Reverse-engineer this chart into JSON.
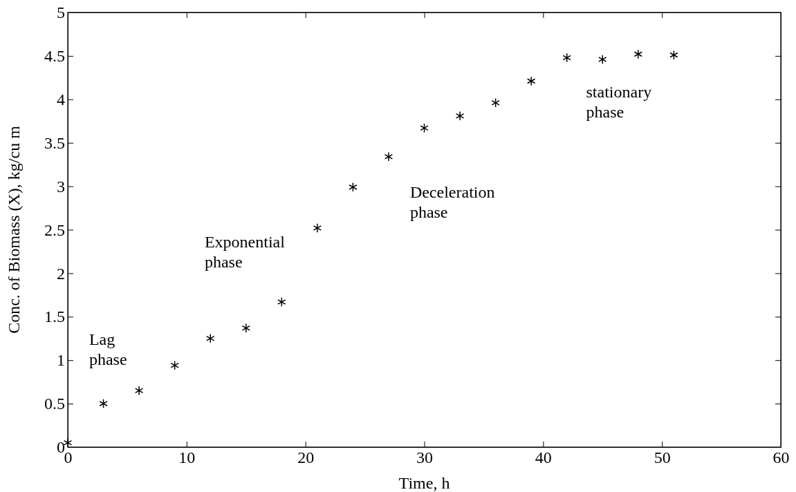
{
  "chart_data": {
    "type": "scatter",
    "xlabel": "Time, h",
    "ylabel": "Conc. of Biomass (X), kg/cu m",
    "x": [
      0,
      3,
      6,
      9,
      12,
      15,
      18,
      21,
      24,
      27,
      30,
      33,
      36,
      39,
      42,
      45,
      48,
      51
    ],
    "series": [
      {
        "color": "#000000",
        "values": [
          0.05,
          0.5,
          0.65,
          0.94,
          1.25,
          1.37,
          1.67,
          2.52,
          2.99,
          3.34,
          3.67,
          3.81,
          3.96,
          4.21,
          4.48,
          4.46,
          4.52,
          4.51
        ]
      }
    ],
    "xlim": [
      0,
      60
    ],
    "xticks": [
      0,
      10,
      20,
      30,
      40,
      50,
      60
    ],
    "ylim": [
      0,
      5
    ],
    "yticks": [
      0,
      0.5,
      1,
      1.5,
      2,
      2.5,
      3,
      3.5,
      4,
      4.5,
      5
    ],
    "marker": "cross",
    "annotations": [
      "Lag\nphase",
      "Exponential\nphase",
      "Deceleration\nphase",
      "stationary\nphase"
    ]
  }
}
